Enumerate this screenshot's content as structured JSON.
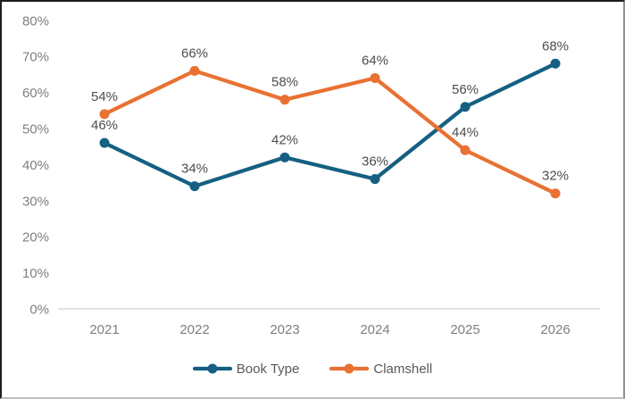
{
  "chart_data": {
    "type": "line",
    "title": "",
    "xlabel": "",
    "ylabel": "",
    "categories": [
      "2021",
      "2022",
      "2023",
      "2024",
      "2025",
      "2026"
    ],
    "series": [
      {
        "name": "Book Type",
        "color": "#156082",
        "values": [
          46,
          34,
          42,
          36,
          56,
          68
        ],
        "data_labels": [
          "46%",
          "34%",
          "42%",
          "36%",
          "56%",
          "68%"
        ]
      },
      {
        "name": "Clamshell",
        "color": "#E97132",
        "values": [
          54,
          66,
          58,
          64,
          44,
          32
        ],
        "data_labels": [
          "54%",
          "66%",
          "58%",
          "64%",
          "44%",
          "32%"
        ]
      }
    ],
    "ylim": [
      0,
      80
    ],
    "ytick_step": 10,
    "ytick_labels": [
      "0%",
      "10%",
      "20%",
      "30%",
      "40%",
      "50%",
      "60%",
      "70%",
      "80%"
    ],
    "grid": false,
    "data_labels_shown": true,
    "legend_position": "bottom",
    "marker_shape": "circle"
  },
  "palette": {
    "series_book_type": "#156082",
    "series_clamshell": "#E97132",
    "axis_line": "#d9d9d9",
    "axis_text": "#7f7f7f",
    "data_label_text": "#4d4d4d",
    "legend_text": "#595959",
    "background": "#ffffff"
  }
}
